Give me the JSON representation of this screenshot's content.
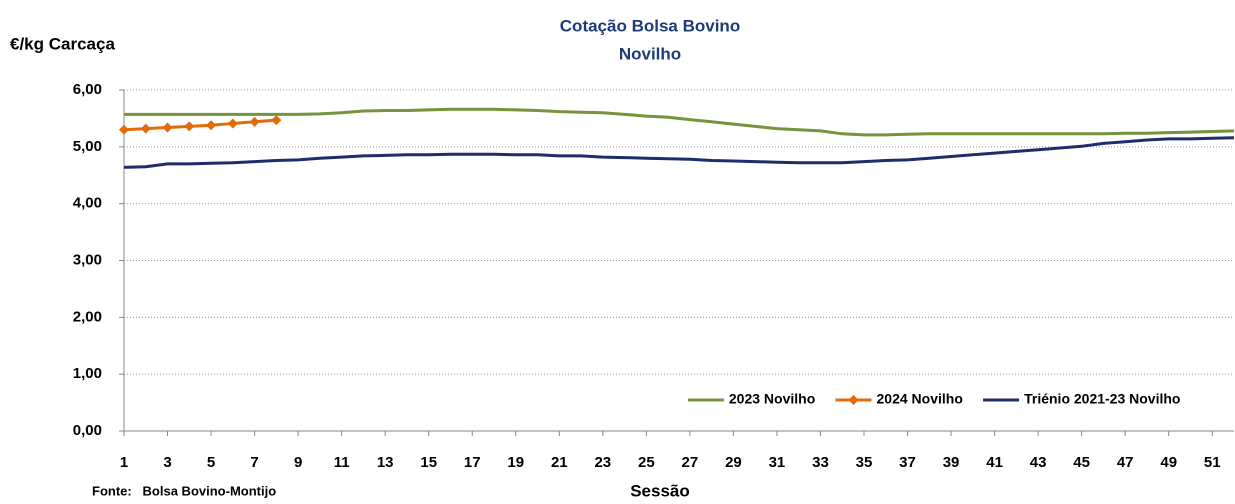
{
  "chart_data": {
    "type": "line",
    "title": "Cotação Bolsa Bovino",
    "subtitle": "Novilho",
    "y_label": "€/kg Carcaça",
    "x_label": "Sessão",
    "source": "Fonte:   Bolsa Bovino-Montijo",
    "x": [
      1,
      2,
      3,
      4,
      5,
      6,
      7,
      8,
      9,
      10,
      11,
      12,
      13,
      14,
      15,
      16,
      17,
      18,
      19,
      20,
      21,
      22,
      23,
      24,
      25,
      26,
      27,
      28,
      29,
      30,
      31,
      32,
      33,
      34,
      35,
      36,
      37,
      38,
      39,
      40,
      41,
      42,
      43,
      44,
      45,
      46,
      47,
      48,
      49,
      50,
      51,
      52
    ],
    "xlim": [
      1,
      52
    ],
    "xticks": [
      1,
      3,
      5,
      7,
      9,
      11,
      13,
      15,
      17,
      19,
      21,
      23,
      25,
      27,
      29,
      31,
      33,
      35,
      37,
      39,
      41,
      43,
      45,
      47,
      49,
      51
    ],
    "ylim": [
      0,
      6
    ],
    "yticks": [
      {
        "value": 0,
        "label": "0,00"
      },
      {
        "value": 1,
        "label": "1,00"
      },
      {
        "value": 2,
        "label": "2,00"
      },
      {
        "value": 3,
        "label": "3,00"
      },
      {
        "value": 4,
        "label": "4,00"
      },
      {
        "value": 5,
        "label": "5,00"
      },
      {
        "value": 6,
        "label": "6,00"
      }
    ],
    "grid": true,
    "legend": "lower right",
    "series": [
      {
        "name": "2023 Novilho",
        "color": "#77933c",
        "marker": false,
        "values": [
          5.57,
          5.57,
          5.57,
          5.57,
          5.57,
          5.57,
          5.57,
          5.57,
          5.57,
          5.58,
          5.6,
          5.63,
          5.64,
          5.64,
          5.65,
          5.66,
          5.66,
          5.66,
          5.65,
          5.64,
          5.62,
          5.61,
          5.6,
          5.57,
          5.54,
          5.52,
          5.48,
          5.44,
          5.4,
          5.36,
          5.32,
          5.3,
          5.28,
          5.23,
          5.21,
          5.21,
          5.22,
          5.23,
          5.23,
          5.23,
          5.23,
          5.23,
          5.23,
          5.23,
          5.23,
          5.23,
          5.24,
          5.24,
          5.25,
          5.26,
          5.27,
          5.28
        ]
      },
      {
        "name": "2024 Novilho",
        "color": "#e36c09",
        "marker": true,
        "values": [
          5.3,
          5.32,
          5.34,
          5.36,
          5.38,
          5.41,
          5.44,
          5.47,
          null,
          null,
          null,
          null,
          null,
          null,
          null,
          null,
          null,
          null,
          null,
          null,
          null,
          null,
          null,
          null,
          null,
          null,
          null,
          null,
          null,
          null,
          null,
          null,
          null,
          null,
          null,
          null,
          null,
          null,
          null,
          null,
          null,
          null,
          null,
          null,
          null,
          null,
          null,
          null,
          null,
          null,
          null,
          null
        ]
      },
      {
        "name": "Triénio 2021-23 Novilho",
        "color": "#1f2d6b",
        "marker": false,
        "values": [
          4.64,
          4.65,
          4.7,
          4.7,
          4.71,
          4.72,
          4.74,
          4.76,
          4.77,
          4.8,
          4.82,
          4.84,
          4.85,
          4.86,
          4.86,
          4.87,
          4.87,
          4.87,
          4.86,
          4.86,
          4.84,
          4.84,
          4.82,
          4.81,
          4.8,
          4.79,
          4.78,
          4.76,
          4.75,
          4.74,
          4.73,
          4.72,
          4.72,
          4.72,
          4.74,
          4.76,
          4.77,
          4.8,
          4.83,
          4.86,
          4.89,
          4.92,
          4.95,
          4.98,
          5.01,
          5.06,
          5.09,
          5.12,
          5.14,
          5.14,
          5.15,
          5.16
        ]
      }
    ]
  }
}
